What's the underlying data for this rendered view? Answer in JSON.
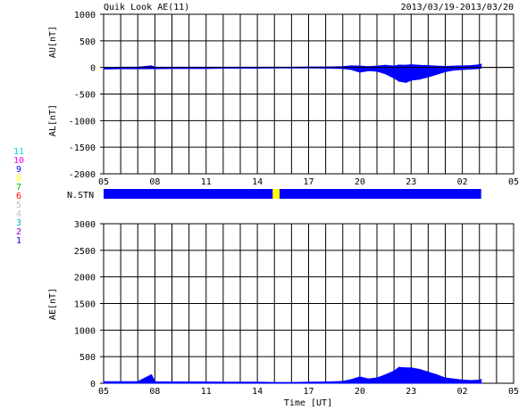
{
  "header": {
    "title": "Quik Look AE(11)",
    "date_range": "2013/03/19-2013/03/20"
  },
  "stations": {
    "items": [
      {
        "label": "11",
        "color": "#00e0e0"
      },
      {
        "label": "10",
        "color": "#ff00ff"
      },
      {
        "label": "9",
        "color": "#0000ff"
      },
      {
        "label": "8",
        "color": "#ffff00"
      },
      {
        "label": "7",
        "color": "#00c000"
      },
      {
        "label": "6",
        "color": "#ff0000"
      },
      {
        "label": "5",
        "color": "#c0c0c0"
      },
      {
        "label": "4",
        "color": "#c0c0c0"
      },
      {
        "label": "3",
        "color": "#00b0b0"
      },
      {
        "label": "2",
        "color": "#9000c0"
      },
      {
        "label": "1",
        "color": "#0000ff"
      }
    ]
  },
  "nstn_label": "N.STN",
  "xlabel": "Time [UT]",
  "chart_data": [
    {
      "type": "area",
      "panel": "AU/AL",
      "ylabels": [
        "AU[nT]",
        "AL[nT]"
      ],
      "xlim": [
        5,
        29
      ],
      "x_ticks": [
        "05",
        "08",
        "11",
        "14",
        "17",
        "20",
        "23",
        "02",
        "05"
      ],
      "ylim": [
        -2000,
        1000
      ],
      "y_ticks": [
        "1000",
        "500",
        "0",
        "-500",
        "-1000",
        "-1500",
        "-2000"
      ],
      "color": "#0000ff",
      "series": [
        {
          "x": [
            5.0,
            6.0,
            7.0,
            7.8,
            8.0,
            9.0,
            10.0,
            11.0,
            12.0,
            13.0,
            14.0,
            15.0,
            16.0,
            17.0,
            18.0,
            19.0,
            19.5,
            20.0,
            20.5,
            21.0,
            21.5,
            22.0,
            22.3,
            22.7,
            23.0,
            23.5,
            24.0,
            24.5,
            25.0,
            25.5,
            26.0,
            26.5,
            27.0,
            27.1
          ],
          "values": [
            0,
            5,
            5,
            30,
            5,
            5,
            5,
            5,
            5,
            5,
            5,
            5,
            5,
            10,
            10,
            15,
            30,
            25,
            15,
            25,
            40,
            25,
            45,
            40,
            50,
            40,
            35,
            25,
            20,
            25,
            30,
            35,
            50,
            60
          ]
        },
        {
          "x": [
            5.0,
            6.0,
            7.0,
            8.0,
            9.0,
            10.0,
            11.0,
            12.0,
            13.0,
            14.0,
            15.0,
            16.0,
            17.0,
            18.0,
            19.0,
            19.5,
            20.0,
            20.5,
            21.0,
            21.5,
            22.0,
            22.3,
            22.7,
            23.0,
            23.5,
            24.0,
            24.5,
            25.0,
            25.5,
            26.0,
            26.5,
            27.0,
            27.1
          ],
          "values": [
            -30,
            -25,
            -25,
            -25,
            -20,
            -20,
            -20,
            -15,
            -15,
            -15,
            -10,
            -10,
            -10,
            -15,
            -20,
            -40,
            -90,
            -60,
            -70,
            -120,
            -200,
            -260,
            -280,
            -240,
            -220,
            -180,
            -130,
            -80,
            -50,
            -40,
            -30,
            -20,
            -10
          ]
        }
      ]
    },
    {
      "type": "area",
      "panel": "AE",
      "ylabel": "AE[nT]",
      "xlim": [
        5,
        29
      ],
      "x_ticks": [
        "05",
        "08",
        "11",
        "14",
        "17",
        "20",
        "23",
        "02",
        "05"
      ],
      "ylim": [
        0,
        3000
      ],
      "y_ticks": [
        "3000",
        "2500",
        "2000",
        "1500",
        "1000",
        "500",
        "0"
      ],
      "color": "#0000ff",
      "series": [
        {
          "x": [
            5.0,
            6.0,
            7.0,
            7.8,
            8.0,
            9.0,
            10.0,
            11.0,
            12.0,
            13.0,
            14.0,
            15.0,
            16.0,
            17.0,
            18.0,
            19.0,
            19.5,
            20.0,
            20.5,
            21.0,
            21.5,
            22.0,
            22.3,
            22.7,
            23.0,
            23.5,
            24.0,
            24.5,
            25.0,
            25.5,
            26.0,
            26.5,
            27.0,
            27.1
          ],
          "values": [
            30,
            30,
            30,
            160,
            30,
            25,
            25,
            25,
            20,
            20,
            20,
            15,
            15,
            20,
            25,
            35,
            70,
            120,
            80,
            100,
            160,
            230,
            300,
            290,
            290,
            260,
            210,
            160,
            100,
            80,
            60,
            50,
            60,
            70
          ]
        }
      ]
    },
    {
      "type": "bar",
      "panel": "N.STN",
      "segments": [
        {
          "from": 5.0,
          "to": 14.9,
          "color": "#0000ff"
        },
        {
          "from": 14.9,
          "to": 15.3,
          "color": "#ffff00"
        },
        {
          "from": 15.3,
          "to": 27.1,
          "color": "#0000ff"
        }
      ]
    }
  ]
}
